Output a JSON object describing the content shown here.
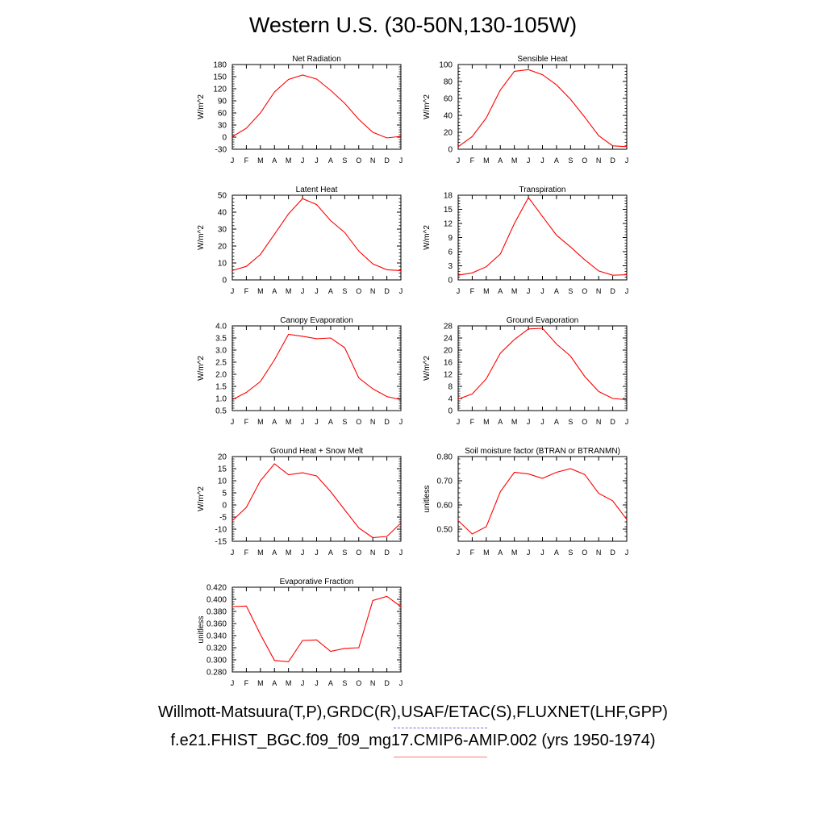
{
  "title": "Western U.S. (30-50N,130-105W)",
  "legend": {
    "observations": "Willmott-Matsuura(T,P),GRDC(R),USAF/ETAC(S),FLUXNET(LHF,GPP)",
    "model": "f.e21.FHIST_BGC.f09_f09_mg17.CMIP6-AMIP.002 (yrs 1950-1974)",
    "observations_color": "#7070ee",
    "model_color": "#ff0000"
  },
  "chart_data": [
    {
      "type": "line",
      "title": "Net Radiation",
      "ylabel": "W/m^2",
      "categories": [
        "J",
        "F",
        "M",
        "A",
        "M",
        "J",
        "J",
        "A",
        "S",
        "O",
        "N",
        "D",
        "J"
      ],
      "ylim": [
        -30,
        180
      ],
      "yticks": [
        "-30",
        "0",
        "30",
        "60",
        "90",
        "120",
        "150",
        "180"
      ],
      "yticks_values": [
        -30,
        0,
        30,
        60,
        90,
        120,
        150,
        180
      ],
      "series": [
        {
          "values": [
            1,
            22,
            60,
            112,
            143,
            154,
            144,
            116,
            84,
            44,
            12,
            -2,
            2
          ],
          "color": "#ff0000"
        }
      ]
    },
    {
      "type": "line",
      "title": "Sensible Heat",
      "ylabel": "W/m^2",
      "categories": [
        "J",
        "F",
        "M",
        "A",
        "M",
        "J",
        "J",
        "A",
        "S",
        "O",
        "N",
        "D",
        "J"
      ],
      "ylim": [
        0,
        100
      ],
      "yticks": [
        "0",
        "20",
        "40",
        "60",
        "80",
        "100"
      ],
      "yticks_values": [
        0,
        20,
        40,
        60,
        80,
        100
      ],
      "series": [
        {
          "values": [
            3,
            15,
            37,
            70,
            92,
            94,
            88,
            76,
            59,
            38,
            16,
            4,
            3
          ],
          "color": "#ff0000"
        }
      ]
    },
    {
      "type": "line",
      "title": "Latent Heat",
      "ylabel": "W/m^2",
      "categories": [
        "J",
        "F",
        "M",
        "A",
        "M",
        "J",
        "J",
        "A",
        "S",
        "O",
        "N",
        "D",
        "J"
      ],
      "ylim": [
        0,
        50
      ],
      "yticks": [
        "0",
        "10",
        "20",
        "30",
        "40",
        "50"
      ],
      "yticks_values": [
        0,
        10,
        20,
        30,
        40,
        50
      ],
      "series": [
        {
          "values": [
            5.5,
            8,
            15,
            27,
            39,
            48,
            44.5,
            35,
            28,
            17,
            9.5,
            6,
            5.5
          ],
          "color": "#ff0000"
        }
      ]
    },
    {
      "type": "line",
      "title": "Transpiration",
      "ylabel": "W/m^2",
      "categories": [
        "J",
        "F",
        "M",
        "A",
        "M",
        "J",
        "J",
        "A",
        "S",
        "O",
        "N",
        "D",
        "J"
      ],
      "ylim": [
        0,
        18
      ],
      "yticks": [
        "0",
        "3",
        "6",
        "9",
        "12",
        "15",
        "18"
      ],
      "yticks_values": [
        0,
        3,
        6,
        9,
        12,
        15,
        18
      ],
      "series": [
        {
          "values": [
            1,
            1.5,
            2.8,
            5.5,
            12,
            17.5,
            13.5,
            9.5,
            7,
            4.3,
            1.9,
            1,
            1.1
          ],
          "color": "#ff0000"
        }
      ]
    },
    {
      "type": "line",
      "title": "Canopy Evaporation",
      "ylabel": "W/m^2",
      "categories": [
        "J",
        "F",
        "M",
        "A",
        "M",
        "J",
        "J",
        "A",
        "S",
        "O",
        "N",
        "D",
        "J"
      ],
      "ylim": [
        0.5,
        4.0
      ],
      "yticks": [
        "0.5",
        "1.0",
        "1.5",
        "2.0",
        "2.5",
        "3.0",
        "3.5",
        "4.0"
      ],
      "yticks_values": [
        0.5,
        1.0,
        1.5,
        2.0,
        2.5,
        3.0,
        3.5,
        4.0
      ],
      "series": [
        {
          "values": [
            0.95,
            1.25,
            1.7,
            2.6,
            3.65,
            3.57,
            3.47,
            3.5,
            3.1,
            1.85,
            1.4,
            1.08,
            0.95
          ],
          "color": "#ff0000"
        }
      ]
    },
    {
      "type": "line",
      "title": "Ground Evaporation",
      "ylabel": "W/m^2",
      "categories": [
        "J",
        "F",
        "M",
        "A",
        "M",
        "J",
        "J",
        "A",
        "S",
        "O",
        "N",
        "D",
        "J"
      ],
      "ylim": [
        0,
        28
      ],
      "yticks": [
        "0",
        "4",
        "8",
        "12",
        "16",
        "20",
        "24",
        "28"
      ],
      "yticks_values": [
        0,
        4,
        8,
        12,
        16,
        20,
        24,
        28
      ],
      "series": [
        {
          "values": [
            3.8,
            5.5,
            10.5,
            19,
            23.5,
            27,
            27.2,
            22,
            18,
            11.3,
            6.3,
            4,
            3.6
          ],
          "color": "#ff0000"
        }
      ]
    },
    {
      "type": "line",
      "title": "Ground Heat + Snow Melt",
      "ylabel": "W/m^2",
      "categories": [
        "J",
        "F",
        "M",
        "A",
        "M",
        "J",
        "J",
        "A",
        "S",
        "O",
        "N",
        "D",
        "J"
      ],
      "ylim": [
        -15,
        20
      ],
      "yticks": [
        "-15",
        "-10",
        "-5",
        "0",
        "5",
        "10",
        "15",
        "20"
      ],
      "yticks_values": [
        -15,
        -10,
        -5,
        0,
        5,
        10,
        15,
        20
      ],
      "series": [
        {
          "values": [
            -6.5,
            -1,
            10,
            17,
            12.5,
            13.3,
            12,
            5.5,
            -2,
            -9.5,
            -13.5,
            -13,
            -7.5
          ],
          "color": "#ff0000"
        }
      ]
    },
    {
      "type": "line",
      "title": "Soil moisture factor (BTRAN or BTRANMN)",
      "ylabel": "unitless",
      "categories": [
        "J",
        "F",
        "M",
        "A",
        "M",
        "J",
        "J",
        "A",
        "S",
        "O",
        "N",
        "D",
        "J"
      ],
      "ylim": [
        0.45,
        0.8
      ],
      "yticks": [
        "0.50",
        "0.60",
        "0.70",
        "0.80"
      ],
      "yticks_values": [
        0.5,
        0.6,
        0.7,
        0.8
      ],
      "series": [
        {
          "values": [
            0.535,
            0.48,
            0.51,
            0.655,
            0.735,
            0.728,
            0.71,
            0.735,
            0.75,
            0.726,
            0.648,
            0.617,
            0.54
          ],
          "color": "#ff0000"
        }
      ]
    },
    {
      "type": "line",
      "title": "Evaporative Fraction",
      "ylabel": "unitless",
      "categories": [
        "J",
        "F",
        "M",
        "A",
        "M",
        "J",
        "J",
        "A",
        "S",
        "O",
        "N",
        "D",
        "J"
      ],
      "ylim": [
        0.28,
        0.42
      ],
      "yticks": [
        "0.280",
        "0.300",
        "0.320",
        "0.340",
        "0.360",
        "0.380",
        "0.400",
        "0.420"
      ],
      "yticks_values": [
        0.28,
        0.3,
        0.32,
        0.34,
        0.36,
        0.38,
        0.4,
        0.42
      ],
      "series": [
        {
          "values": [
            0.388,
            0.389,
            0.342,
            0.299,
            0.297,
            0.332,
            0.333,
            0.314,
            0.319,
            0.32,
            0.398,
            0.405,
            0.388
          ],
          "color": "#ff0000"
        }
      ]
    }
  ]
}
